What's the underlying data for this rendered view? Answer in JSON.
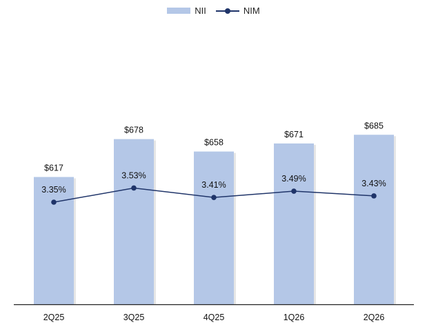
{
  "chart_data": {
    "type": "bar",
    "categories": [
      "2Q25",
      "3Q25",
      "4Q25",
      "1Q26",
      "2Q26"
    ],
    "series": [
      {
        "name": "NII",
        "type": "bar",
        "values": [
          617,
          678,
          658,
          671,
          685
        ],
        "labels": [
          "$617",
          "$678",
          "$658",
          "$671",
          "$685"
        ],
        "color": "#b4c7e7"
      },
      {
        "name": "NIM",
        "type": "line",
        "values": [
          3.35,
          3.53,
          3.41,
          3.49,
          3.43
        ],
        "labels": [
          "3.35%",
          "3.53%",
          "3.41%",
          "3.49%",
          "3.43%"
        ],
        "color": "#1f3469"
      }
    ],
    "legend_position": "top-center",
    "grid": false
  }
}
